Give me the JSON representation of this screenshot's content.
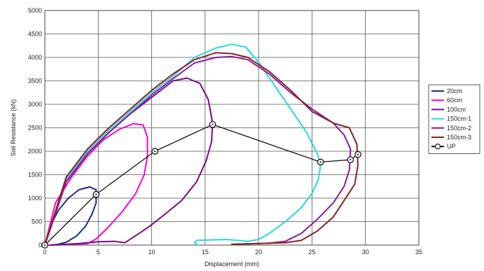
{
  "chart_data": {
    "type": "line",
    "title": "",
    "xlabel": "Displacement (mm)",
    "ylabel": "Soil Resistance (kN)",
    "xlim": [
      0,
      35
    ],
    "ylim": [
      0,
      5000
    ],
    "xticks": [
      0,
      5,
      10,
      15,
      20,
      25,
      30,
      35
    ],
    "yticks": [
      0,
      500,
      1000,
      1500,
      2000,
      2500,
      3000,
      3500,
      4000,
      4500,
      5000
    ],
    "grid": true,
    "legend_position": "right",
    "series": [
      {
        "name": "20cm",
        "color": "#1a2f8a",
        "x": [
          0,
          0.6,
          1.3,
          2.2,
          3.2,
          4.2,
          4.8,
          4.8,
          4.4,
          3.8,
          3.0,
          2.0,
          1.2,
          0.6
        ],
        "y": [
          0,
          450,
          750,
          1000,
          1180,
          1240,
          1180,
          900,
          650,
          400,
          200,
          60,
          15,
          0
        ]
      },
      {
        "name": "60cm",
        "color": "#ff00cc",
        "x": [
          0,
          1.0,
          2.5,
          4.0,
          5.5,
          7.0,
          8.3,
          9.2,
          9.6,
          9.6,
          9.3,
          8.5,
          7.2,
          5.8,
          4.8,
          4.0,
          2.5,
          1.2,
          0.3
        ],
        "y": [
          0,
          900,
          1450,
          1900,
          2250,
          2470,
          2590,
          2560,
          2300,
          1900,
          1500,
          1100,
          700,
          350,
          130,
          30,
          20,
          5,
          0
        ]
      },
      {
        "name": "100cm",
        "color": "#7a0a8a",
        "x": [
          0,
          2,
          4,
          6,
          8,
          10,
          12,
          13.3,
          14.5,
          15.3,
          15.7,
          15.6,
          15.1,
          14.2,
          12.8,
          11.2,
          9.8,
          8.5,
          7.5,
          6.5,
          5.0,
          3.0,
          1.5,
          0.5
        ],
        "y": [
          0,
          1350,
          1950,
          2400,
          2800,
          3150,
          3500,
          3560,
          3450,
          3100,
          2600,
          2200,
          1800,
          1350,
          950,
          650,
          400,
          200,
          50,
          80,
          70,
          30,
          10,
          0
        ]
      },
      {
        "name": "150cm-1",
        "color": "#22dddd",
        "x": [
          0,
          2,
          4,
          6,
          8,
          10,
          12,
          14,
          16,
          17.5,
          18.8,
          20,
          21.5,
          23,
          24.5,
          25.5,
          25.8,
          25.6,
          25,
          24,
          22.5,
          21,
          20,
          19,
          18,
          17,
          15.5,
          14.2,
          14,
          14.2
        ],
        "y": [
          0,
          1400,
          2000,
          2450,
          2850,
          3250,
          3600,
          4000,
          4200,
          4280,
          4220,
          3900,
          3400,
          2900,
          2400,
          1950,
          1700,
          1400,
          1100,
          800,
          500,
          250,
          120,
          80,
          100,
          120,
          110,
          100,
          60,
          10
        ]
      },
      {
        "name": "150cm-2",
        "color": "#8b1aa0",
        "x": [
          0,
          2,
          4,
          6,
          8,
          10,
          12,
          14,
          16,
          17.5,
          19,
          21,
          23,
          25,
          27,
          28,
          28.6,
          28.5,
          28,
          27,
          25.5,
          24,
          22.5,
          21,
          19.5,
          18
        ],
        "y": [
          0,
          1350,
          1950,
          2400,
          2800,
          3200,
          3550,
          3880,
          4000,
          4020,
          3950,
          3650,
          3250,
          2900,
          2600,
          2350,
          2050,
          1600,
          1250,
          900,
          550,
          250,
          80,
          40,
          30,
          20
        ]
      },
      {
        "name": "150cm-3",
        "color": "#8b2222",
        "x": [
          0,
          2,
          4,
          6,
          8,
          10,
          12,
          14,
          16,
          17.5,
          19,
          21,
          23,
          25,
          27,
          28.5,
          29.2,
          29.3,
          29,
          28,
          27,
          25.5,
          24,
          22.5,
          21,
          19.5,
          17.5
        ],
        "y": [
          0,
          1450,
          2050,
          2500,
          2900,
          3300,
          3650,
          3950,
          4100,
          4080,
          4000,
          3700,
          3300,
          2850,
          2600,
          2500,
          2150,
          1700,
          1300,
          950,
          600,
          300,
          100,
          50,
          40,
          30,
          20
        ]
      },
      {
        "name": "UP",
        "color": "#111111",
        "marker": "circle",
        "x": [
          0,
          4.8,
          10.3,
          15.7,
          25.8,
          28.6,
          29.3
        ],
        "y": [
          0,
          1080,
          2000,
          2570,
          1770,
          1820,
          1930
        ]
      }
    ]
  }
}
